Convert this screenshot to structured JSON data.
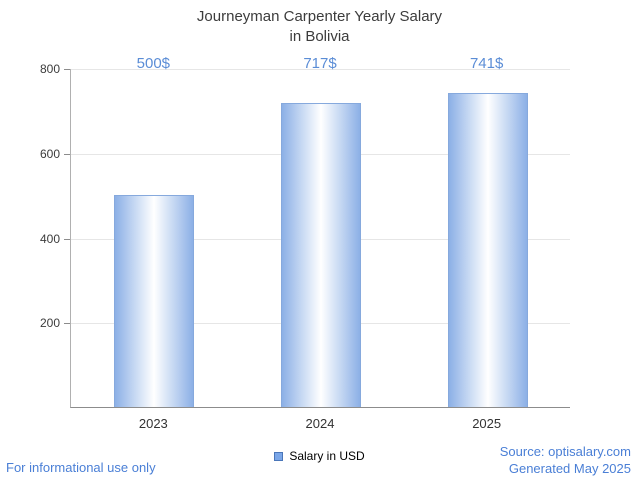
{
  "chart_data": {
    "type": "bar",
    "title": "Journeyman Carpenter Yearly Salary in Bolivia",
    "title_lines": [
      "Journeyman Carpenter Yearly Salary",
      "in Bolivia"
    ],
    "categories": [
      "2023",
      "2024",
      "2025"
    ],
    "values": [
      500,
      717,
      741
    ],
    "value_labels": [
      "500$",
      "717$",
      "741$"
    ],
    "series_name": "Salary in USD",
    "xlabel": "",
    "ylabel": "",
    "ylim": [
      0,
      800
    ],
    "yticks": [
      200,
      400,
      600,
      800
    ],
    "grid": true,
    "legend_position": "bottom"
  },
  "footer": {
    "left": "For informational use only",
    "source": "Source: optisalary.com",
    "generated": "Generated May 2025"
  },
  "colors": {
    "accent_blue": "#5b8dd6",
    "footer_blue": "#4a7fd6",
    "bar_edge": "#8cb0e6",
    "bar_center": "#ffffff",
    "bar_border": "#86a9dd",
    "legend_swatch": "#7aa6e8",
    "axis": "#8c8c8c",
    "grid": "#e6e6e6",
    "title_text": "#3c3c3c"
  }
}
